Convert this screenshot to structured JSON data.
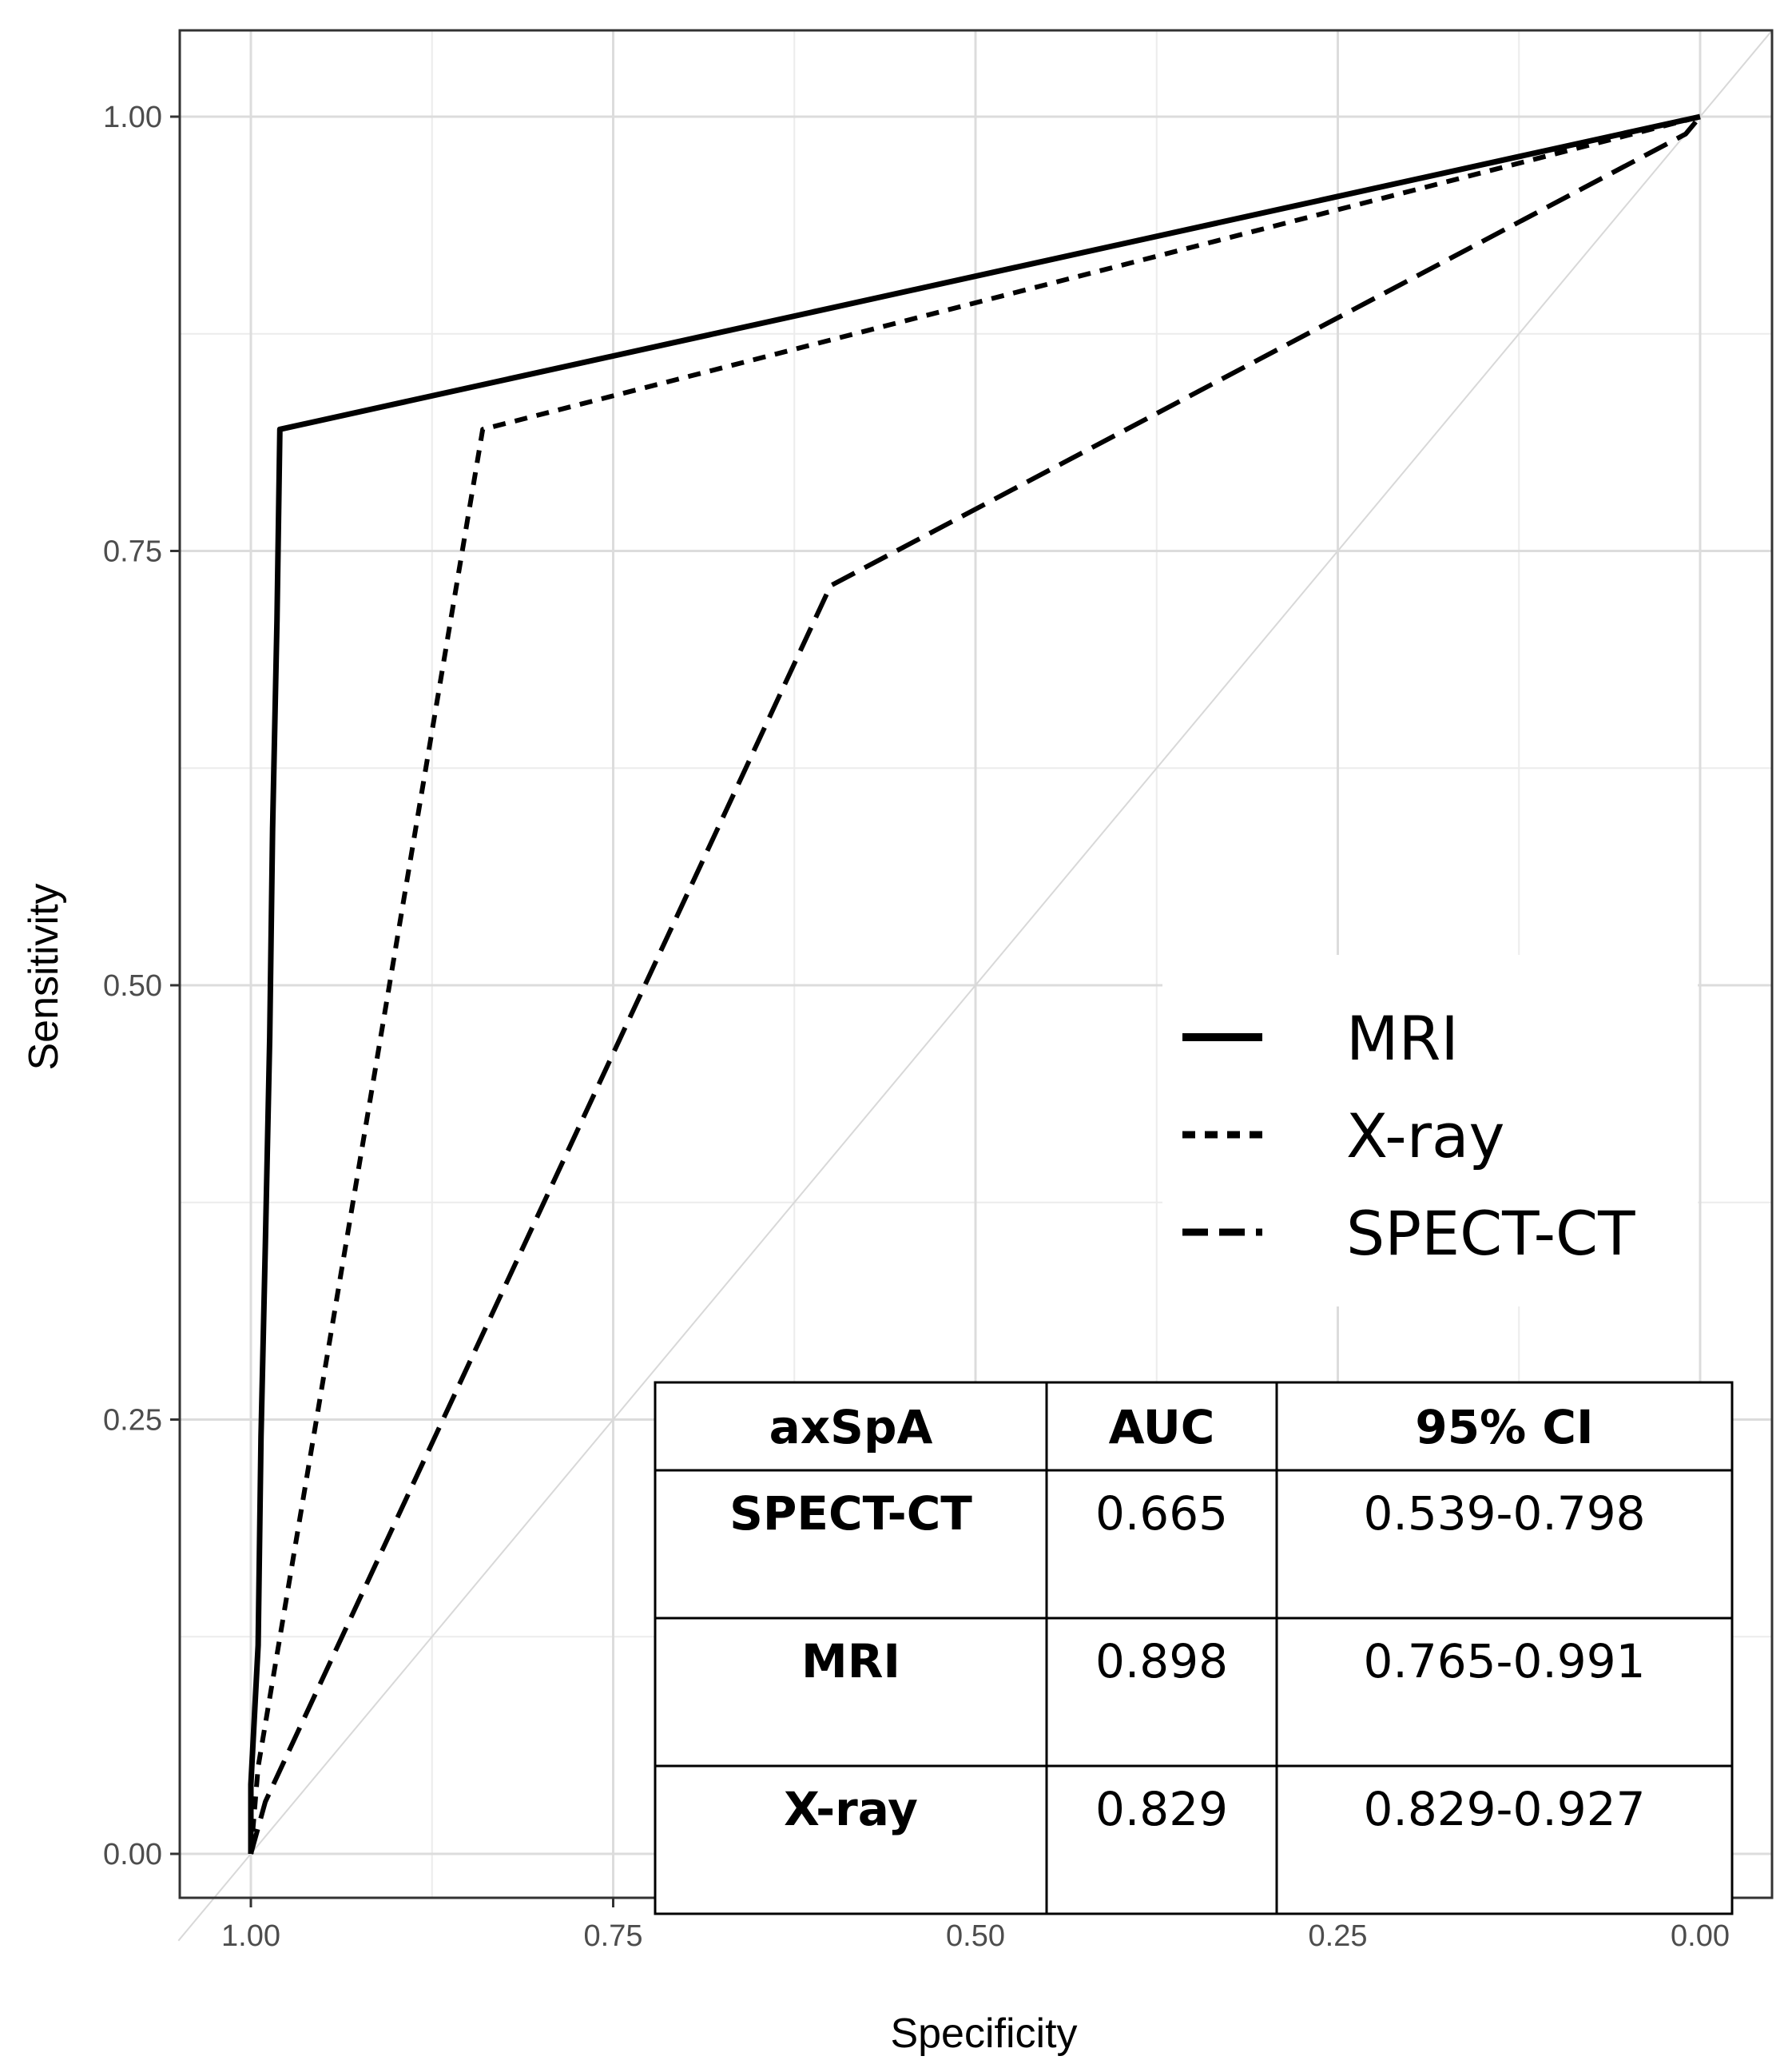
{
  "chart_data": {
    "type": "line",
    "title": "",
    "xlabel": "Specificity",
    "ylabel": "Sensitivity",
    "x_reversed": true,
    "xlim": [
      1.05,
      -0.05
    ],
    "ylim": [
      -0.03,
      1.05
    ],
    "x_ticks": [
      1.0,
      0.75,
      0.5,
      0.25,
      0.0
    ],
    "x_tick_labels": [
      "1.00",
      "0.75",
      "0.50",
      "0.25",
      "0.00"
    ],
    "y_ticks": [
      0.0,
      0.25,
      0.5,
      0.75,
      1.0
    ],
    "y_tick_labels": [
      "0.00",
      "0.25",
      "0.50",
      "0.75",
      "1.00"
    ],
    "grid": true,
    "diagonal_reference": true,
    "series": [
      {
        "name": "MRI",
        "style": "solid",
        "points": [
          [
            1.0,
            0.0
          ],
          [
            1.0,
            0.04
          ],
          [
            0.995,
            0.12
          ],
          [
            0.993,
            0.24
          ],
          [
            0.99,
            0.35
          ],
          [
            0.987,
            0.47
          ],
          [
            0.985,
            0.59
          ],
          [
            0.982,
            0.71
          ],
          [
            0.98,
            0.82
          ],
          [
            0.0,
            1.0
          ]
        ]
      },
      {
        "name": "X-ray",
        "style": "dotted",
        "points": [
          [
            1.0,
            0.0
          ],
          [
            0.995,
            0.05
          ],
          [
            0.84,
            0.82
          ],
          [
            0.0,
            1.0
          ]
        ]
      },
      {
        "name": "SPECT-CT",
        "style": "dashed",
        "points": [
          [
            1.0,
            0.0
          ],
          [
            0.99,
            0.03
          ],
          [
            0.6,
            0.73
          ],
          [
            0.01,
            0.99
          ],
          [
            0.0,
            1.0
          ]
        ]
      }
    ],
    "legend": {
      "position": "right-middle",
      "entries": [
        "MRI",
        "X-ray",
        "SPECT-CT"
      ]
    },
    "table": {
      "position": "bottom-right",
      "headers": [
        "axSpA",
        "AUC",
        "95% CI"
      ],
      "rows": [
        [
          "SPECT-CT",
          "0.665",
          "0.539-0.798"
        ],
        [
          "MRI",
          "0.898",
          "0.765-0.991"
        ],
        [
          "X-ray",
          "0.829",
          "0.829-0.927"
        ]
      ]
    }
  }
}
